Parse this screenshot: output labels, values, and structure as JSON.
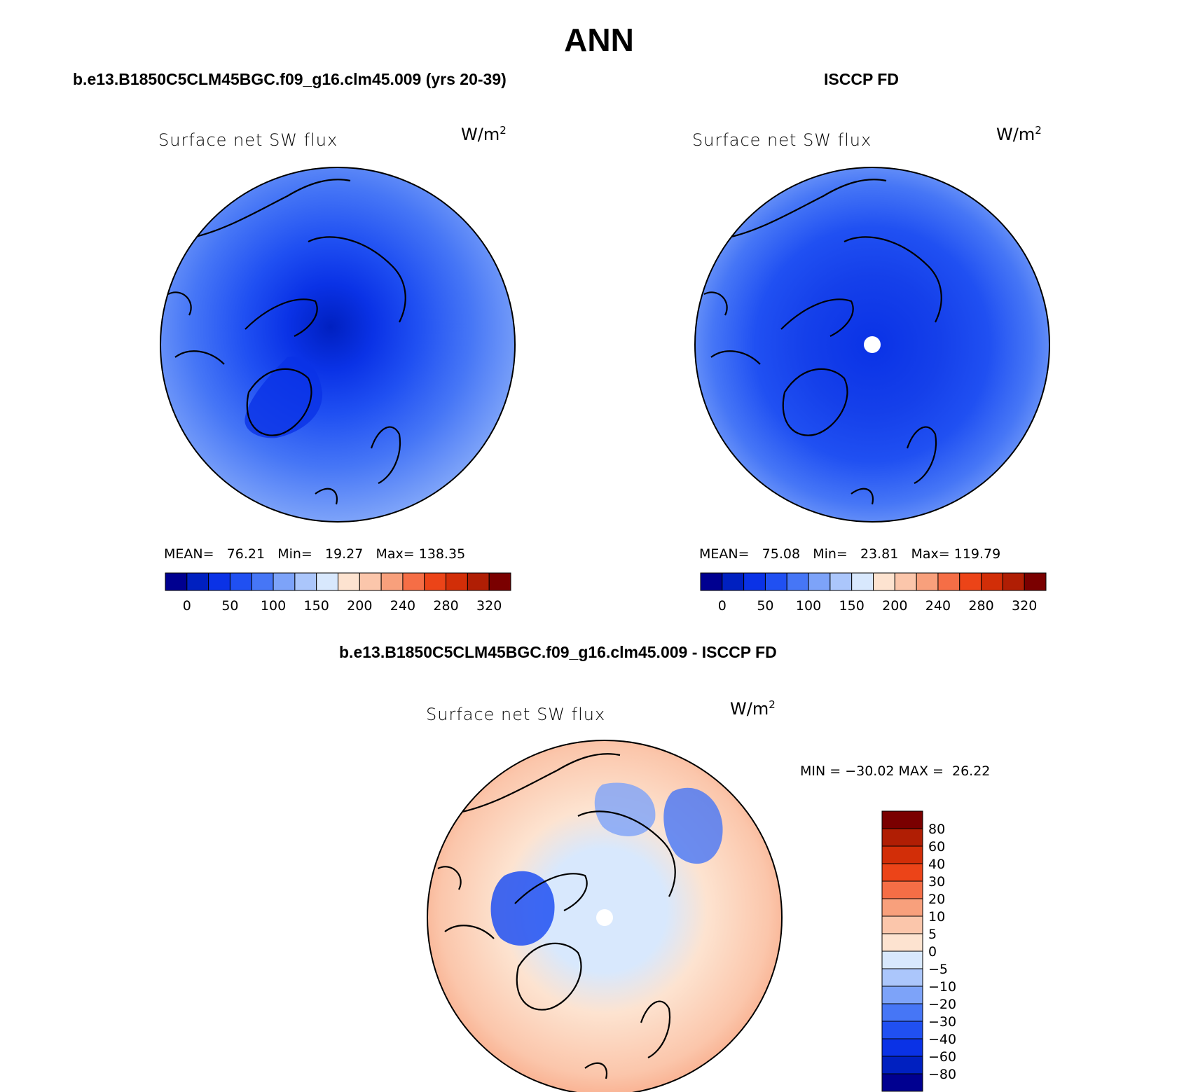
{
  "figure": {
    "title": "ANN",
    "colors": {
      "ocean_dark": "#1a3fe0",
      "land_outline": "#000000",
      "background": "#ffffff"
    }
  },
  "chart_data": [
    {
      "type": "heatmap",
      "projection": "north-polar-stereographic",
      "panel_title": "b.e13.B1850C5CLM45BGC.f09_g16.clm45.009 (yrs 20-39)",
      "variable": "Surface net SW flux",
      "units": "W/m",
      "units_sup": "2",
      "stats": {
        "mean_label": "MEAN=",
        "mean": "76.21",
        "min_label": "Min=",
        "min": "19.27",
        "max_label": "Max=",
        "max": "138.35"
      },
      "colorbar": {
        "orientation": "horizontal",
        "tick_labels": [
          "0",
          "50",
          "100",
          "150",
          "200",
          "240",
          "280",
          "320"
        ],
        "colors": [
          "#000090",
          "#0020c0",
          "#0a32e6",
          "#2050f2",
          "#4676f6",
          "#7da3f9",
          "#abc6fb",
          "#d8e8fd",
          "#fde3d0",
          "#fbc6ab",
          "#f8a07c",
          "#f56e46",
          "#ec4418",
          "#d22e08",
          "#b01e04",
          "#7a0000"
        ]
      }
    },
    {
      "type": "heatmap",
      "projection": "north-polar-stereographic",
      "panel_title": "ISCCP FD",
      "variable": "Surface net SW flux",
      "units": "W/m",
      "units_sup": "2",
      "stats": {
        "mean_label": "MEAN=",
        "mean": "75.08",
        "min_label": "Min=",
        "min": "23.81",
        "max_label": "Max=",
        "max": "119.79"
      },
      "colorbar": {
        "orientation": "horizontal",
        "tick_labels": [
          "0",
          "50",
          "100",
          "150",
          "200",
          "240",
          "280",
          "320"
        ],
        "colors": [
          "#000090",
          "#0020c0",
          "#0a32e6",
          "#2050f2",
          "#4676f6",
          "#7da3f9",
          "#abc6fb",
          "#d8e8fd",
          "#fde3d0",
          "#fbc6ab",
          "#f8a07c",
          "#f56e46",
          "#ec4418",
          "#d22e08",
          "#b01e04",
          "#7a0000"
        ]
      }
    },
    {
      "type": "heatmap",
      "projection": "north-polar-stereographic",
      "panel_title": "b.e13.B1850C5CLM45BGC.f09_g16.clm45.009 - ISCCP FD",
      "variable": "Surface net SW flux",
      "units": "W/m",
      "units_sup": "2",
      "stats": {
        "text": "MIN = −30.02 MAX =  26.22"
      },
      "colorbar": {
        "orientation": "vertical",
        "tick_labels": [
          "80",
          "60",
          "40",
          "30",
          "20",
          "10",
          "5",
          "0",
          "−5",
          "−10",
          "−20",
          "−30",
          "−40",
          "−60",
          "−80"
        ],
        "colors": [
          "#7a0000",
          "#b01e04",
          "#d22e08",
          "#ec4418",
          "#f56e46",
          "#f8a07c",
          "#fbc6ab",
          "#fde3d0",
          "#d8e8fd",
          "#abc6fb",
          "#7da3f9",
          "#4676f6",
          "#2050f2",
          "#0a32e6",
          "#0020c0",
          "#000090"
        ]
      }
    }
  ]
}
